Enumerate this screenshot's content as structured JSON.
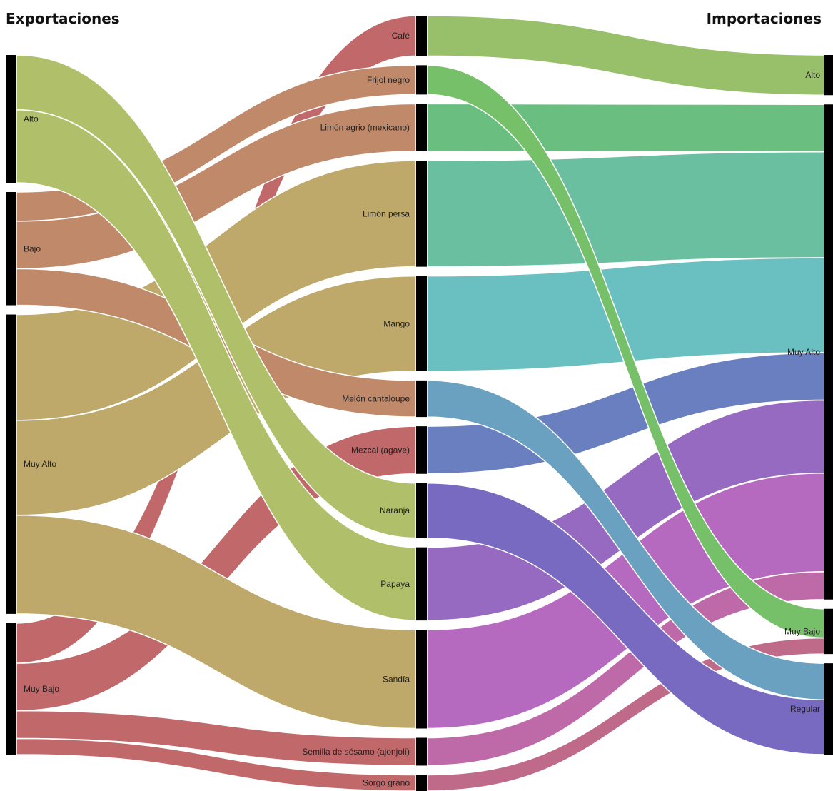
{
  "titles": {
    "left": "Exportaciones",
    "right": "Importaciones"
  },
  "diagram": {
    "type": "sankey",
    "columns": [
      {
        "id": "exp",
        "nodes": [
          "Alto",
          "Bajo",
          "Muy Alto",
          "Muy Bajo"
        ]
      },
      {
        "id": "prod",
        "nodes": [
          "Café",
          "Frijol negro",
          "Limón agrio (mexicano)",
          "Limón persa",
          "Mango",
          "Melón cantaloupe",
          "Mezcal (agave)",
          "Naranja",
          "Papaya",
          "Sandía",
          "Semilla de sésamo (ajonjolí)",
          "Sorgo grano"
        ]
      },
      {
        "id": "imp",
        "nodes": [
          "Alto",
          "Muy Alto",
          "Muy Bajo",
          "Regular"
        ]
      }
    ],
    "links_left": [
      {
        "source": "Alto",
        "target": "Naranja",
        "value": 75,
        "color": "#b0c06a"
      },
      {
        "source": "Alto",
        "target": "Papaya",
        "value": 100,
        "color": "#b0c06a"
      },
      {
        "source": "Bajo",
        "target": "Frijol negro",
        "value": 40,
        "color": "#c0896a"
      },
      {
        "source": "Bajo",
        "target": "Limón agrio (mexicano)",
        "value": 65,
        "color": "#c0896a"
      },
      {
        "source": "Bajo",
        "target": "Melón cantaloupe",
        "value": 50,
        "color": "#c0896a"
      },
      {
        "source": "Muy Alto",
        "target": "Limón persa",
        "value": 145,
        "color": "#bea96a"
      },
      {
        "source": "Muy Alto",
        "target": "Mango",
        "value": 130,
        "color": "#bea96a"
      },
      {
        "source": "Muy Alto",
        "target": "Sandía",
        "value": 135,
        "color": "#bea96a"
      },
      {
        "source": "Muy Bajo",
        "target": "Café",
        "value": 55,
        "color": "#c0686a"
      },
      {
        "source": "Muy Bajo",
        "target": "Mezcal (agave)",
        "value": 65,
        "color": "#c0686a"
      },
      {
        "source": "Muy Bajo",
        "target": "Semilla de sésamo (ajonjolí)",
        "value": 38,
        "color": "#c0686a"
      },
      {
        "source": "Muy Bajo",
        "target": "Sorgo grano",
        "value": 22,
        "color": "#c0686a"
      }
    ],
    "links_right": [
      {
        "source": "Café",
        "target": "Alto",
        "value": 55,
        "color": "#98c06a"
      },
      {
        "source": "Frijol negro",
        "target": "Muy Bajo",
        "value": 40,
        "color": "#77c06a"
      },
      {
        "source": "Limón agrio (mexicano)",
        "target": "Muy Alto",
        "value": 65,
        "color": "#6abf80"
      },
      {
        "source": "Limón persa",
        "target": "Muy Alto",
        "value": 145,
        "color": "#6abfa0"
      },
      {
        "source": "Mango",
        "target": "Muy Alto",
        "value": 130,
        "color": "#6abfc0"
      },
      {
        "source": "Melón cantaloupe",
        "target": "Regular",
        "value": 50,
        "color": "#6aa0c0"
      },
      {
        "source": "Mezcal (agave)",
        "target": "Muy Alto",
        "value": 65,
        "color": "#6a7fc0"
      },
      {
        "source": "Naranja",
        "target": "Regular",
        "value": 75,
        "color": "#786ac0"
      },
      {
        "source": "Papaya",
        "target": "Muy Alto",
        "value": 100,
        "color": "#966ac0"
      },
      {
        "source": "Sandía",
        "target": "Muy Alto",
        "value": 135,
        "color": "#b66abf"
      },
      {
        "source": "Semilla de sésamo (ajonjolí)",
        "target": "Muy Alto",
        "value": 38,
        "color": "#bf6aa8"
      },
      {
        "source": "Sorgo grano",
        "target": "Muy Bajo",
        "value": 22,
        "color": "#bf6a88"
      }
    ],
    "node_color": "#000000"
  }
}
